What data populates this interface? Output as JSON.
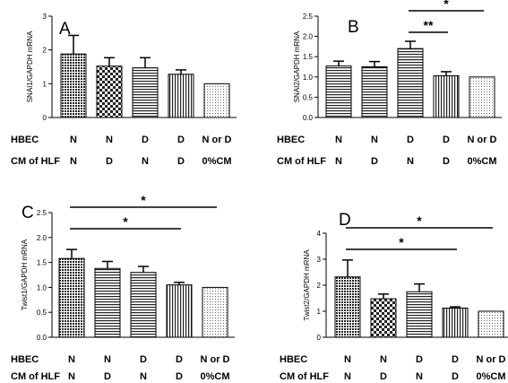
{
  "figure": {
    "row_labels": [
      "HBEC",
      "CM of HLF"
    ]
  },
  "chart_data": [
    {
      "type": "bar",
      "panel": "A",
      "ylabel": "SNAI1/GAPDH mRNA",
      "ylim": [
        0,
        3
      ],
      "yticks": [
        "0",
        "1",
        "2",
        "3"
      ],
      "categories": [
        {
          "hbec": "N",
          "cm": "N"
        },
        {
          "hbec": "N",
          "cm": "D"
        },
        {
          "hbec": "D",
          "cm": "N"
        },
        {
          "hbec": "D",
          "cm": "D"
        },
        {
          "hbec": "N or D",
          "cm": "0%CM"
        }
      ],
      "values": [
        1.88,
        1.52,
        1.47,
        1.28,
        1.0
      ],
      "errors": [
        0.55,
        0.25,
        0.3,
        0.13,
        0.0
      ],
      "patterns": [
        "dense-dot",
        "check",
        "hstripe",
        "vstripe",
        "light-dot"
      ],
      "significance": []
    },
    {
      "type": "bar",
      "panel": "B",
      "ylabel": "SNAI2/GAPDH mRNA",
      "ylim": [
        0,
        2.5
      ],
      "yticks": [
        "0.0",
        "0.5",
        "1.0",
        "1.5",
        "2.0",
        "2.5"
      ],
      "categories": [
        {
          "hbec": "N",
          "cm": "N"
        },
        {
          "hbec": "N",
          "cm": "D"
        },
        {
          "hbec": "D",
          "cm": "N"
        },
        {
          "hbec": "D",
          "cm": "D"
        },
        {
          "hbec": "N or D",
          "cm": "0%CM"
        }
      ],
      "values": [
        1.27,
        1.25,
        1.7,
        1.03,
        1.0
      ],
      "errors": [
        0.12,
        0.13,
        0.18,
        0.1,
        0.0
      ],
      "patterns": [
        "hstripe",
        "hstripe",
        "hstripe",
        "vstripe",
        "light-dot"
      ],
      "significance": [
        {
          "from": 2,
          "to": 3,
          "label": "**",
          "level": 1
        },
        {
          "from": 2,
          "to": 4,
          "label": "*",
          "level": 2
        }
      ]
    },
    {
      "type": "bar",
      "panel": "C",
      "ylabel": "Twist1/GAPDH mRNA",
      "ylim": [
        0,
        2.5
      ],
      "yticks": [
        "0.0",
        "0.5",
        "1.0",
        "1.5",
        "2.0",
        "2.5"
      ],
      "categories": [
        {
          "hbec": "N",
          "cm": "N"
        },
        {
          "hbec": "N",
          "cm": "D"
        },
        {
          "hbec": "D",
          "cm": "N"
        },
        {
          "hbec": "D",
          "cm": "D"
        },
        {
          "hbec": "N or D",
          "cm": "0%CM"
        }
      ],
      "values": [
        1.58,
        1.38,
        1.3,
        1.05,
        1.0
      ],
      "errors": [
        0.18,
        0.14,
        0.12,
        0.05,
        0.0
      ],
      "patterns": [
        "dense-dot",
        "hstripe",
        "hstripe",
        "vstripe",
        "light-dot"
      ],
      "significance": [
        {
          "from": 0,
          "to": 3,
          "label": "*",
          "level": 1
        },
        {
          "from": 0,
          "to": 4,
          "label": "*",
          "level": 2
        }
      ]
    },
    {
      "type": "bar",
      "panel": "D",
      "ylabel": "Twist2/GAPDH mRNA",
      "ylim": [
        0,
        4
      ],
      "yticks": [
        "0",
        "1",
        "2",
        "3",
        "4"
      ],
      "categories": [
        {
          "hbec": "N",
          "cm": "N"
        },
        {
          "hbec": "N",
          "cm": "D"
        },
        {
          "hbec": "D",
          "cm": "N"
        },
        {
          "hbec": "D",
          "cm": "D"
        },
        {
          "hbec": "N or D",
          "cm": "0%CM"
        }
      ],
      "values": [
        2.32,
        1.48,
        1.75,
        1.12,
        1.0
      ],
      "errors": [
        0.65,
        0.18,
        0.3,
        0.05,
        0.0
      ],
      "patterns": [
        "dense-dot",
        "check",
        "hstripe",
        "vstripe",
        "light-dot"
      ],
      "significance": [
        {
          "from": 0,
          "to": 3,
          "label": "*",
          "level": 1
        },
        {
          "from": 0,
          "to": 4,
          "label": "*",
          "level": 2
        }
      ]
    }
  ]
}
